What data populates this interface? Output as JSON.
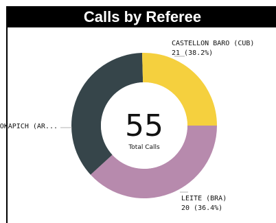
{
  "chart_data": {
    "type": "pie",
    "title": "Calls by Referee",
    "center_value": "55",
    "center_label": "Total Calls",
    "slices": [
      {
        "label": "CASTELLON BARO (CUB)",
        "value": 21,
        "value_label": "21 (38.2%)",
        "color": "#b78aad"
      },
      {
        "label": "LEITE (BRA)",
        "value": 20,
        "value_label": "20 (36.4%)",
        "color": "#36454a"
      },
      {
        "label": "OKAPICH (AR...",
        "value": 14,
        "value_label": "",
        "color": "#f5d03e"
      }
    ]
  }
}
